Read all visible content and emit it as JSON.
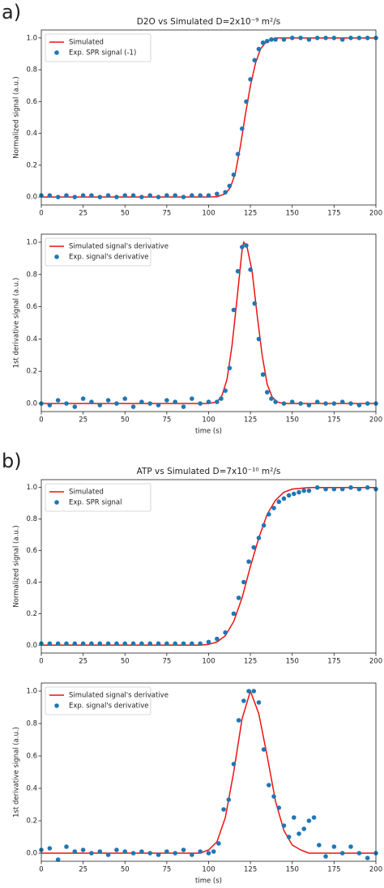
{
  "panel_labels": [
    "a)",
    "b)"
  ],
  "chart_data": [
    {
      "type": "line",
      "title": "D2O vs Simulated D=2x10⁻⁹ m²/s",
      "ylabel": "Normalized signal (a.u.)",
      "legend": "upper left",
      "xlim": [
        0,
        200
      ],
      "xticks": [
        0,
        25,
        50,
        75,
        100,
        125,
        150,
        175,
        200
      ],
      "ylim": [
        -0.05,
        1.05
      ],
      "yticks": [
        {
          "value": 0,
          "label": "0.0"
        },
        0.2,
        0.4,
        0.6,
        0.8,
        {
          "value": 1,
          "label": "1.0"
        }
      ],
      "series": [
        {
          "name": "Simulated",
          "type": "line",
          "color": "#ee1111",
          "x": [
            0,
            100,
            105,
            110,
            113,
            116,
            119,
            122,
            125,
            128,
            131,
            134,
            137,
            140,
            145,
            150,
            200
          ],
          "values": [
            0,
            0,
            0.002,
            0.02,
            0.06,
            0.15,
            0.32,
            0.52,
            0.7,
            0.84,
            0.93,
            0.97,
            0.99,
            1,
            1,
            1,
            1
          ]
        },
        {
          "name": "Exp. SPR signal (-1)",
          "type": "scatter",
          "color": "#1f77b4",
          "x": [
            0,
            5,
            10,
            15,
            20,
            25,
            30,
            35,
            40,
            45,
            50,
            55,
            60,
            65,
            70,
            75,
            80,
            85,
            90,
            95,
            100,
            105,
            110,
            112.5,
            115,
            117.5,
            120,
            122.5,
            125,
            127.5,
            130,
            132.5,
            135,
            137.5,
            140,
            145,
            150,
            155,
            160,
            165,
            170,
            175,
            180,
            185,
            190,
            195,
            200
          ],
          "values": [
            0.01,
            0.01,
            0,
            0.01,
            0,
            0.01,
            0.01,
            0,
            0.01,
            0,
            0.01,
            0.01,
            0,
            0.01,
            0,
            0.01,
            0.01,
            0,
            0.01,
            0.01,
            0.01,
            0.02,
            0.03,
            0.07,
            0.14,
            0.27,
            0.43,
            0.6,
            0.74,
            0.86,
            0.93,
            0.97,
            0.98,
            0.99,
            0.99,
            0.99,
            1,
            1,
            0.99,
            1,
            1,
            1,
            0.99,
            1,
            1,
            1,
            1
          ]
        }
      ]
    },
    {
      "type": "line",
      "ylabel": "1st derivative signal (a.u.)",
      "xlabel": "time (s)",
      "legend": "upper left",
      "xlim": [
        0,
        200
      ],
      "xticks": [
        0,
        25,
        50,
        75,
        100,
        125,
        150,
        175,
        200
      ],
      "ylim": [
        -0.05,
        1.05
      ],
      "yticks": [
        {
          "value": 0,
          "label": "0.0"
        },
        0.2,
        0.4,
        0.6,
        0.8,
        {
          "value": 1,
          "label": "1.0"
        }
      ],
      "series": [
        {
          "name": "Simulated signal's derivative",
          "type": "line",
          "color": "#ee1111",
          "x": [
            0,
            100,
            105,
            108,
            111,
            114,
            117,
            120,
            121,
            123,
            126,
            129,
            132,
            135,
            138,
            141,
            145,
            200
          ],
          "values": [
            0,
            0,
            0.01,
            0.05,
            0.15,
            0.36,
            0.65,
            0.95,
            1,
            0.97,
            0.82,
            0.55,
            0.3,
            0.12,
            0.04,
            0.01,
            0,
            0
          ]
        },
        {
          "name": "Exp. signal's derivative",
          "type": "scatter",
          "color": "#1f77b4",
          "x": [
            0,
            5,
            10,
            15,
            20,
            25,
            30,
            35,
            40,
            45,
            50,
            55,
            60,
            65,
            70,
            75,
            80,
            85,
            90,
            95,
            100,
            105,
            107.5,
            110,
            112.5,
            115,
            117.5,
            120,
            122.5,
            125,
            127.5,
            130,
            132.5,
            135,
            137.5,
            140,
            145,
            150,
            155,
            160,
            165,
            170,
            175,
            180,
            185,
            190,
            195,
            200
          ],
          "values": [
            0,
            -0.01,
            0.02,
            0,
            -0.02,
            0.03,
            0.01,
            -0.01,
            0.02,
            0,
            0.03,
            -0.02,
            0.01,
            0,
            -0.01,
            0.02,
            0.01,
            -0.02,
            0.03,
            0,
            0.01,
            0.01,
            0.03,
            0.08,
            0.22,
            0.58,
            0.82,
            0.97,
            0.98,
            0.83,
            0.62,
            0.4,
            0.18,
            0.07,
            0.03,
            0.01,
            0,
            0.01,
            0,
            -0.01,
            0.01,
            0,
            0,
            0.01,
            0,
            -0.01,
            0,
            0
          ]
        }
      ]
    },
    {
      "type": "line",
      "title": "ATP vs Simulated D=7x10⁻¹⁰ m²/s",
      "ylabel": "Normalized signal (a.u.)",
      "legend": "upper left",
      "xlim": [
        0,
        200
      ],
      "xticks": [
        0,
        25,
        50,
        75,
        100,
        125,
        150,
        175,
        200
      ],
      "ylim": [
        -0.05,
        1.05
      ],
      "yticks": [
        {
          "value": 0,
          "label": "0.0"
        },
        0.2,
        0.4,
        0.6,
        0.8,
        {
          "value": 1,
          "label": "1.0"
        }
      ],
      "series": [
        {
          "name": "Simulated",
          "type": "line",
          "color": "#ee1111",
          "x": [
            0,
            95,
            100,
            105,
            110,
            115,
            120,
            125,
            130,
            135,
            140,
            145,
            150,
            160,
            200
          ],
          "values": [
            0,
            0,
            0.005,
            0.02,
            0.06,
            0.15,
            0.3,
            0.5,
            0.68,
            0.83,
            0.92,
            0.97,
            0.99,
            1,
            1
          ]
        },
        {
          "name": "Exp. SPR signal",
          "type": "scatter",
          "color": "#1f77b4",
          "x": [
            0,
            5,
            10,
            15,
            20,
            25,
            30,
            35,
            40,
            45,
            50,
            55,
            60,
            65,
            70,
            75,
            80,
            85,
            90,
            95,
            100,
            105,
            110,
            115,
            118,
            121,
            124,
            127,
            130,
            133,
            136,
            139,
            142,
            145,
            148,
            151,
            154,
            157,
            160,
            165,
            170,
            175,
            180,
            185,
            190,
            195,
            200
          ],
          "values": [
            0.01,
            0.01,
            0.01,
            0.01,
            0.01,
            0.01,
            0.01,
            0.01,
            0.01,
            0.01,
            0.01,
            0.01,
            0.01,
            0.01,
            0.01,
            0.01,
            0.01,
            0.01,
            0.01,
            0.01,
            0.02,
            0.04,
            0.08,
            0.2,
            0.3,
            0.4,
            0.53,
            0.62,
            0.68,
            0.76,
            0.83,
            0.87,
            0.91,
            0.93,
            0.95,
            0.96,
            0.97,
            0.98,
            0.98,
            1,
            0.99,
            0.99,
            0.99,
            1,
            0.99,
            1,
            0.99
          ]
        }
      ]
    },
    {
      "type": "line",
      "ylabel": "1st derivative signal (a.u.)",
      "xlabel": "time (s)",
      "legend": "upper left",
      "xlim": [
        0,
        200
      ],
      "xticks": [
        0,
        25,
        50,
        75,
        100,
        125,
        150,
        175,
        200
      ],
      "ylim": [
        -0.05,
        1.05
      ],
      "yticks": [
        {
          "value": 0,
          "label": "0.0"
        },
        0.2,
        0.4,
        0.6,
        0.8,
        {
          "value": 1,
          "label": "1.0"
        }
      ],
      "series": [
        {
          "name": "Simulated signal's derivative",
          "type": "line",
          "color": "#ee1111",
          "x": [
            0,
            95,
            100,
            105,
            110,
            115,
            120,
            125,
            130,
            135,
            140,
            145,
            150,
            155,
            160,
            200
          ],
          "values": [
            0,
            0,
            0.02,
            0.07,
            0.22,
            0.5,
            0.83,
            1,
            0.86,
            0.6,
            0.32,
            0.14,
            0.05,
            0.02,
            0,
            0
          ]
        },
        {
          "name": "Exp. signal's derivative",
          "type": "scatter",
          "color": "#1f77b4",
          "x": [
            0,
            5,
            10,
            15,
            20,
            25,
            30,
            35,
            40,
            45,
            50,
            55,
            60,
            65,
            70,
            75,
            80,
            85,
            90,
            95,
            100,
            103,
            106,
            109,
            112,
            115,
            118,
            121,
            124,
            127,
            130,
            133,
            136,
            139,
            142,
            145,
            148,
            151,
            154,
            157,
            160,
            163,
            166,
            170,
            175,
            180,
            185,
            190,
            195,
            200
          ],
          "values": [
            0.02,
            0.03,
            -0.04,
            0.04,
            0.01,
            0.02,
            0,
            0.01,
            -0.01,
            0.02,
            0.01,
            0,
            0.01,
            0,
            -0.01,
            0.01,
            0,
            0.02,
            -0.01,
            0.01,
            0,
            0.01,
            0.06,
            0.27,
            0.33,
            0.55,
            0.82,
            0.94,
            1,
            1,
            0.93,
            0.64,
            0.42,
            0.35,
            0.28,
            0.17,
            0.1,
            0.22,
            0.12,
            0.15,
            0.2,
            0.22,
            0.05,
            -0.02,
            0.04,
            0,
            0.04,
            0,
            -0.03,
            0
          ]
        }
      ]
    }
  ]
}
